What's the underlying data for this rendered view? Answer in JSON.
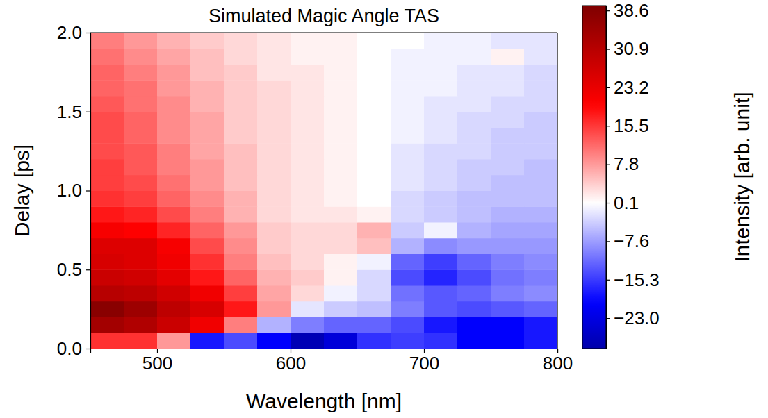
{
  "chart_data": {
    "type": "heatmap",
    "title": "Simulated Magic Angle TAS",
    "x_label": "Wavelength [nm]",
    "y_label": "Delay [ps]",
    "xlim": [
      450,
      800
    ],
    "ylim": [
      0,
      2
    ],
    "xticks": [
      500,
      600,
      700,
      800
    ],
    "yticks": [
      {
        "value": 0,
        "label": "0.0"
      },
      0.5,
      {
        "value": 1,
        "label": "1.0"
      },
      1.5,
      {
        "value": 2,
        "label": "2.0"
      }
    ],
    "x_bins": [
      450,
      475,
      500,
      525,
      550,
      575,
      600,
      625,
      650,
      675,
      700,
      725,
      750,
      775,
      800
    ],
    "y_bins": [
      0,
      0.1,
      0.2,
      0.3,
      0.4,
      0.5,
      0.6,
      0.7,
      0.8,
      0.9,
      1.0,
      1.1,
      1.2,
      1.3,
      1.4,
      1.5,
      1.6,
      1.7,
      1.8,
      1.9,
      2.0
    ],
    "z": [
      [
        16,
        16,
        8,
        -18,
        -14,
        -20,
        -28,
        -24,
        -16,
        -15,
        -16,
        -20,
        -20,
        -18
      ],
      [
        34,
        32,
        28,
        22,
        10,
        -6,
        -10,
        -12,
        -12,
        -14,
        -18,
        -20,
        -20,
        -18
      ],
      [
        38,
        35,
        30,
        26,
        18,
        8,
        -2,
        -4,
        -5,
        -10,
        -13,
        -14,
        -13,
        -12
      ],
      [
        31,
        30,
        27,
        22,
        15,
        7,
        3,
        -1,
        -3,
        -11,
        -13,
        -12,
        -10,
        -9
      ],
      [
        28,
        27,
        24,
        18,
        12,
        6,
        4,
        1,
        -3,
        -14,
        -17,
        -14,
        -11,
        -10
      ],
      [
        26,
        25,
        22,
        16,
        10,
        5,
        3,
        1,
        -1,
        -12,
        -15,
        -12,
        -10,
        -9
      ],
      [
        25,
        25,
        21,
        14,
        9,
        4,
        3,
        3,
        5,
        -6,
        -9,
        -8,
        -8,
        -8
      ],
      [
        21,
        20,
        17,
        12,
        8,
        4,
        3,
        3,
        6,
        -4,
        -1,
        -6,
        -7,
        -7
      ],
      [
        18,
        17,
        14,
        10,
        6,
        3,
        2,
        2,
        1,
        -3,
        -4,
        -5,
        -6,
        -6
      ],
      [
        16,
        15,
        12,
        9,
        6,
        3,
        2,
        1,
        0,
        -3,
        -4,
        -5,
        -5,
        -5
      ],
      [
        15,
        14,
        11,
        8,
        5,
        3,
        2,
        1,
        0,
        -2,
        -3,
        -4,
        -5,
        -5
      ],
      [
        15,
        13,
        10,
        8,
        5,
        3,
        2,
        1,
        0,
        -2,
        -3,
        -4,
        -4,
        -5
      ],
      [
        14,
        13,
        10,
        7,
        5,
        3,
        2,
        1,
        0,
        -2,
        -3,
        -3,
        -4,
        -4
      ],
      [
        14,
        12,
        9,
        7,
        4,
        3,
        2,
        1,
        0,
        -1,
        -2,
        -3,
        -4,
        -4
      ],
      [
        14,
        12,
        9,
        7,
        4,
        3,
        2,
        1,
        0,
        -1,
        -2,
        -3,
        -3,
        -4
      ],
      [
        13,
        11,
        9,
        6,
        4,
        3,
        2,
        1,
        0,
        -1,
        -2,
        -2,
        -3,
        -3
      ],
      [
        12,
        11,
        8,
        6,
        4,
        3,
        2,
        1,
        0,
        -1,
        -1,
        -2,
        -2,
        -3
      ],
      [
        12,
        10,
        8,
        5,
        4,
        2,
        2,
        1,
        0,
        -1,
        -1,
        -2,
        -2,
        -3
      ],
      [
        11,
        9,
        7,
        5,
        3,
        2,
        1,
        1,
        0,
        -1,
        -1,
        -1,
        1,
        -2
      ],
      [
        10,
        8,
        6,
        4,
        3,
        2,
        1,
        1,
        0,
        0,
        -1,
        -1,
        -2,
        -2
      ]
    ],
    "colorbar": {
      "label": "Intensity [arb. unit]",
      "range": [
        -29.1,
        39.6
      ],
      "ticks": [
        38.6,
        30.9,
        23.2,
        15.5,
        7.8,
        0.1,
        {
          "value": -7.6,
          "label": "−7.6"
        },
        {
          "value": -15.3,
          "label": "−15.3"
        },
        {
          "value": -23.0,
          "label": "−23.0"
        }
      ]
    }
  }
}
